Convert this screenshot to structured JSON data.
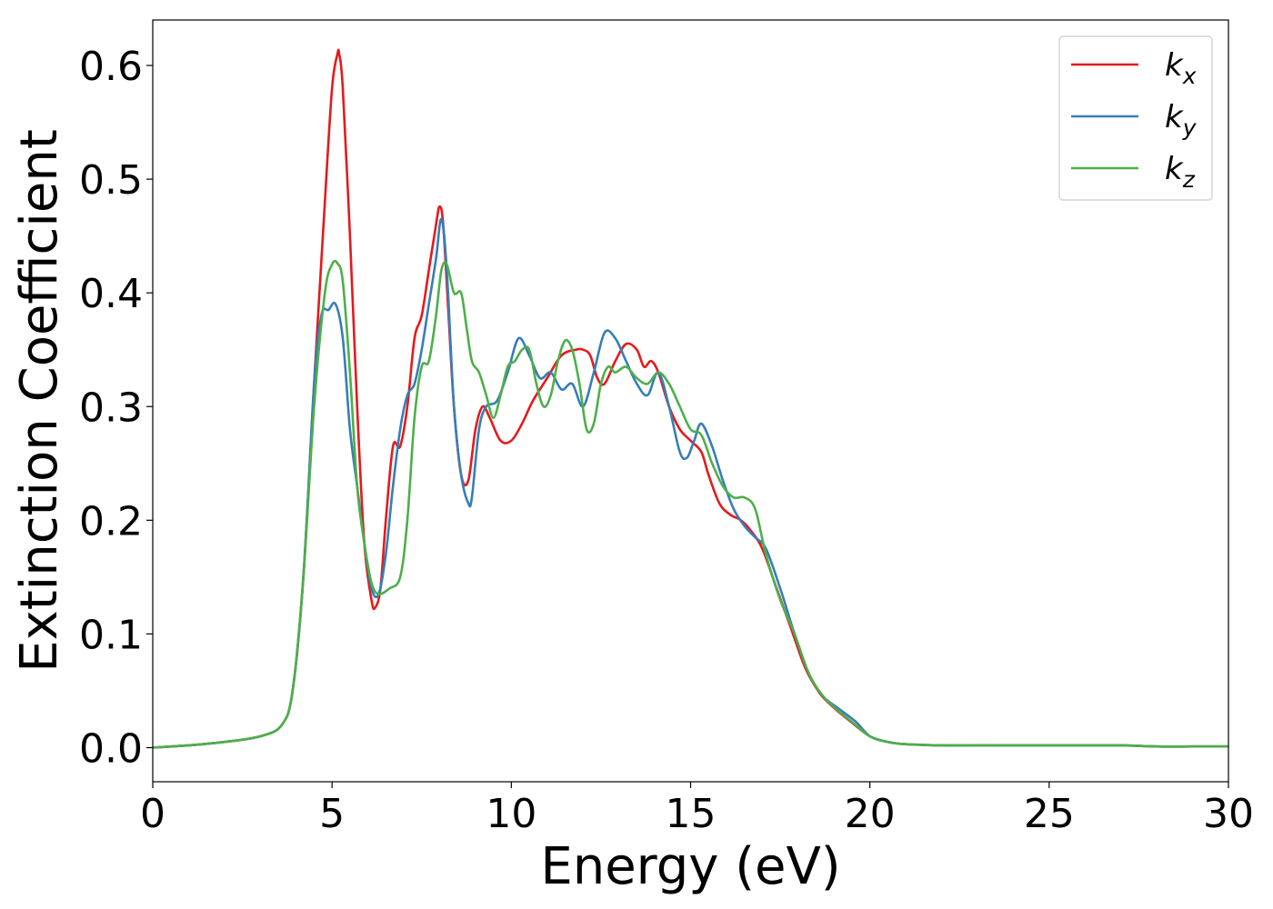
{
  "chart_data": {
    "type": "line",
    "title": "",
    "xlabel": "Energy (eV)",
    "ylabel": "Extinction Coefficient",
    "xlim": [
      0,
      30
    ],
    "ylim": [
      -0.03,
      0.64
    ],
    "xticks": [
      0,
      5,
      10,
      15,
      20,
      25,
      30
    ],
    "xtick_labels": [
      "0",
      "5",
      "10",
      "15",
      "20",
      "25",
      "30"
    ],
    "yticks": [
      0.0,
      0.1,
      0.2,
      0.3,
      0.4,
      0.5,
      0.6
    ],
    "ytick_labels": [
      "0.0",
      "0.1",
      "0.2",
      "0.3",
      "0.4",
      "0.5",
      "0.6"
    ],
    "grid": false,
    "legend_position": "top-right",
    "series": [
      {
        "name": "k_x",
        "label_base": "k",
        "label_sub": "x",
        "color": "#e41a1c",
        "x": [
          0,
          1,
          2,
          3,
          3.6,
          3.9,
          4.2,
          4.5,
          4.8,
          5.0,
          5.15,
          5.2,
          5.3,
          5.5,
          5.7,
          5.9,
          6.1,
          6.2,
          6.35,
          6.5,
          6.7,
          6.9,
          7.1,
          7.3,
          7.5,
          7.7,
          7.9,
          8.0,
          8.1,
          8.25,
          8.4,
          8.6,
          8.8,
          9.0,
          9.2,
          9.4,
          9.7,
          10.0,
          10.3,
          10.6,
          11.0,
          11.4,
          11.8,
          12.0,
          12.2,
          12.4,
          12.6,
          12.9,
          13.2,
          13.5,
          13.7,
          13.9,
          14.1,
          14.4,
          14.7,
          15.0,
          15.3,
          15.5,
          15.8,
          16.1,
          16.4,
          16.7,
          17.0,
          17.4,
          17.8,
          18.2,
          18.6,
          19.0,
          19.5,
          20.0,
          20.5,
          21,
          22,
          23,
          24,
          25,
          26,
          27,
          28,
          29,
          30
        ],
        "y": [
          0.0,
          0.002,
          0.005,
          0.01,
          0.02,
          0.05,
          0.15,
          0.32,
          0.48,
          0.58,
          0.61,
          0.61,
          0.58,
          0.45,
          0.3,
          0.18,
          0.13,
          0.123,
          0.14,
          0.2,
          0.265,
          0.265,
          0.3,
          0.36,
          0.38,
          0.42,
          0.46,
          0.476,
          0.46,
          0.38,
          0.3,
          0.24,
          0.235,
          0.28,
          0.3,
          0.29,
          0.27,
          0.27,
          0.285,
          0.305,
          0.325,
          0.345,
          0.35,
          0.35,
          0.345,
          0.325,
          0.32,
          0.34,
          0.355,
          0.35,
          0.335,
          0.34,
          0.33,
          0.3,
          0.28,
          0.27,
          0.26,
          0.24,
          0.215,
          0.205,
          0.2,
          0.19,
          0.175,
          0.14,
          0.105,
          0.07,
          0.048,
          0.035,
          0.022,
          0.01,
          0.005,
          0.003,
          0.002,
          0.002,
          0.002,
          0.002,
          0.002,
          0.002,
          0.001,
          0.001,
          0.001
        ]
      },
      {
        "name": "k_y",
        "label_base": "k",
        "label_sub": "y",
        "color": "#377eb8",
        "x": [
          0,
          1,
          2,
          3,
          3.6,
          3.9,
          4.2,
          4.5,
          4.7,
          4.9,
          5.1,
          5.3,
          5.5,
          5.7,
          5.9,
          6.1,
          6.3,
          6.5,
          6.7,
          6.9,
          7.1,
          7.3,
          7.5,
          7.7,
          7.9,
          8.05,
          8.2,
          8.4,
          8.6,
          8.8,
          8.9,
          9.1,
          9.3,
          9.6,
          9.9,
          10.2,
          10.5,
          10.8,
          11.1,
          11.4,
          11.7,
          12.0,
          12.3,
          12.6,
          12.9,
          13.2,
          13.5,
          13.8,
          14.1,
          14.4,
          14.7,
          14.9,
          15.1,
          15.3,
          15.6,
          15.9,
          16.2,
          16.5,
          16.8,
          17.1,
          17.5,
          17.9,
          18.3,
          18.7,
          19.1,
          19.6,
          20.0,
          20.5,
          21,
          22,
          23,
          24,
          25,
          26,
          27,
          28,
          29,
          30
        ],
        "y": [
          0.0,
          0.002,
          0.005,
          0.01,
          0.02,
          0.05,
          0.15,
          0.32,
          0.38,
          0.385,
          0.39,
          0.36,
          0.28,
          0.23,
          0.18,
          0.14,
          0.135,
          0.17,
          0.23,
          0.28,
          0.31,
          0.32,
          0.35,
          0.39,
          0.43,
          0.465,
          0.42,
          0.3,
          0.24,
          0.215,
          0.22,
          0.28,
          0.3,
          0.305,
          0.33,
          0.36,
          0.345,
          0.325,
          0.33,
          0.315,
          0.32,
          0.3,
          0.33,
          0.365,
          0.36,
          0.34,
          0.32,
          0.31,
          0.33,
          0.3,
          0.26,
          0.255,
          0.27,
          0.285,
          0.265,
          0.235,
          0.21,
          0.195,
          0.185,
          0.175,
          0.14,
          0.1,
          0.065,
          0.045,
          0.035,
          0.023,
          0.01,
          0.005,
          0.003,
          0.002,
          0.002,
          0.002,
          0.002,
          0.002,
          0.002,
          0.001,
          0.001,
          0.001
        ]
      },
      {
        "name": "k_z",
        "label_base": "k",
        "label_sub": "z",
        "color": "#4daf4a",
        "x": [
          0,
          1,
          2,
          3,
          3.6,
          3.9,
          4.2,
          4.5,
          4.8,
          5.0,
          5.15,
          5.3,
          5.5,
          5.7,
          5.9,
          6.1,
          6.3,
          6.6,
          6.9,
          7.1,
          7.3,
          7.5,
          7.7,
          7.9,
          8.05,
          8.2,
          8.4,
          8.6,
          8.75,
          8.9,
          9.1,
          9.3,
          9.5,
          9.7,
          9.9,
          10.1,
          10.3,
          10.5,
          10.7,
          10.9,
          11.1,
          11.3,
          11.5,
          11.7,
          11.9,
          12.1,
          12.3,
          12.5,
          12.7,
          12.9,
          13.2,
          13.5,
          13.8,
          14.1,
          14.4,
          14.7,
          15.0,
          15.3,
          15.6,
          15.9,
          16.2,
          16.5,
          16.8,
          17.1,
          17.5,
          17.9,
          18.3,
          18.7,
          19.1,
          19.6,
          20.0,
          20.5,
          21,
          22,
          23,
          24,
          25,
          26,
          27,
          28,
          29,
          30
        ],
        "y": [
          0.0,
          0.002,
          0.005,
          0.01,
          0.02,
          0.05,
          0.15,
          0.3,
          0.4,
          0.425,
          0.426,
          0.41,
          0.33,
          0.23,
          0.18,
          0.145,
          0.135,
          0.14,
          0.15,
          0.2,
          0.29,
          0.335,
          0.34,
          0.38,
          0.42,
          0.425,
          0.4,
          0.4,
          0.37,
          0.34,
          0.33,
          0.31,
          0.29,
          0.31,
          0.335,
          0.34,
          0.35,
          0.35,
          0.32,
          0.3,
          0.31,
          0.34,
          0.358,
          0.35,
          0.32,
          0.28,
          0.285,
          0.32,
          0.335,
          0.33,
          0.335,
          0.325,
          0.32,
          0.33,
          0.32,
          0.3,
          0.28,
          0.275,
          0.25,
          0.23,
          0.22,
          0.22,
          0.21,
          0.17,
          0.13,
          0.1,
          0.065,
          0.045,
          0.033,
          0.02,
          0.01,
          0.005,
          0.003,
          0.002,
          0.002,
          0.002,
          0.002,
          0.002,
          0.002,
          0.001,
          0.001,
          0.001
        ]
      }
    ]
  }
}
